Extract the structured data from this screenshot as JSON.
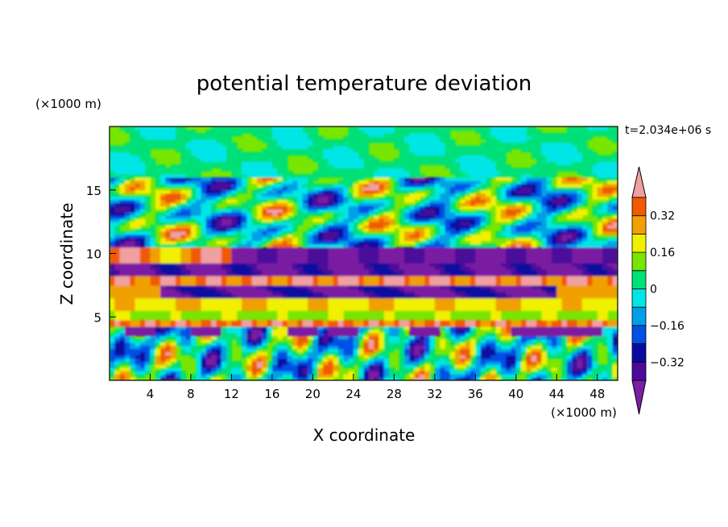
{
  "chart_data": {
    "type": "heatmap",
    "title": "potential temperature deviation",
    "xlabel": "X coordinate",
    "ylabel": "Z coordinate",
    "x_unit": "(×1000 m)",
    "z_unit": "(×1000 m)",
    "time_label": "t=2.034e+06 s",
    "xlim": [
      0,
      50
    ],
    "ylim": [
      0,
      20
    ],
    "x_ticks": [
      4,
      8,
      12,
      16,
      20,
      24,
      28,
      32,
      36,
      40,
      44,
      48
    ],
    "y_ticks": [
      5,
      10,
      15
    ],
    "colorbar": {
      "levels": [
        -0.4,
        -0.32,
        -0.24,
        -0.16,
        -0.08,
        0,
        0.08,
        0.16,
        0.24,
        0.32,
        0.4
      ],
      "labels": [
        "0.32",
        "0.16",
        "0",
        "−0.16",
        "−0.32"
      ],
      "label_values": [
        0.32,
        0.16,
        0,
        -0.16,
        -0.32
      ],
      "colors": [
        "#7a1fa2",
        "#4b0a9a",
        "#0a0aa0",
        "#0050e6",
        "#00a0e6",
        "#00e6e6",
        "#00e078",
        "#78e600",
        "#f0f000",
        "#f0a000",
        "#f05a00",
        "#f01e1e",
        "#f0a0a0"
      ]
    }
  }
}
